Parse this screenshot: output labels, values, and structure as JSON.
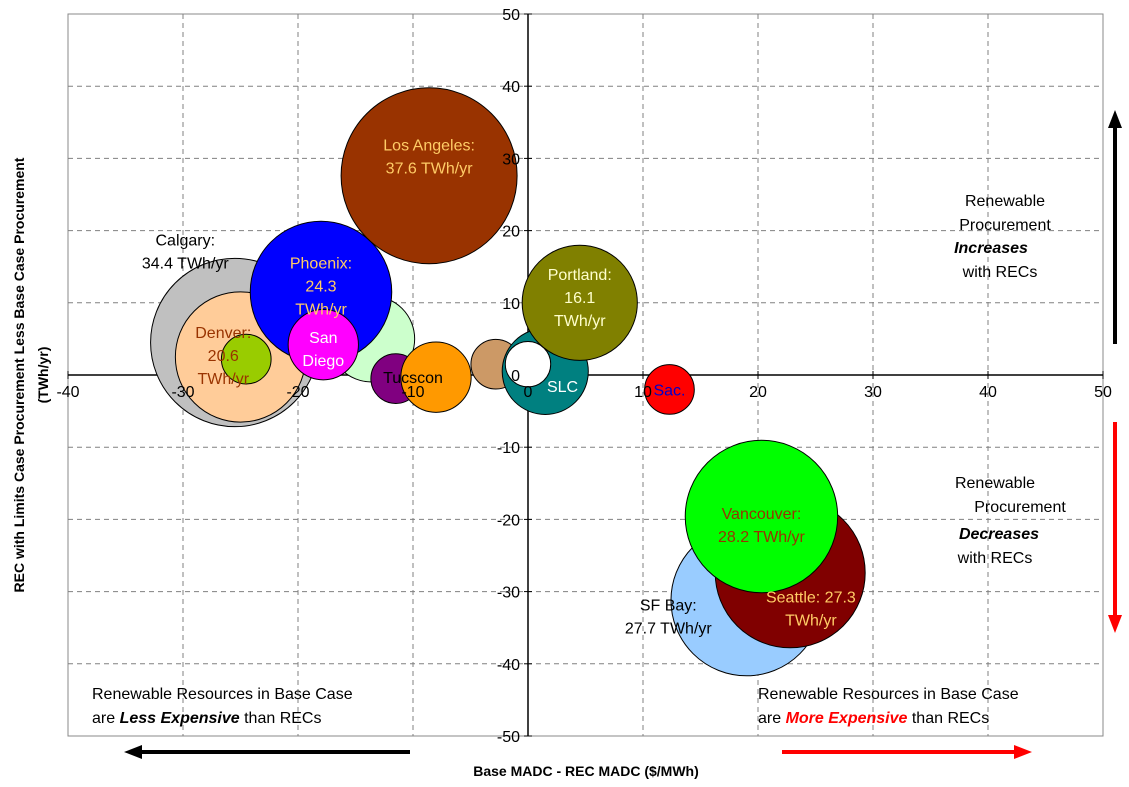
{
  "chart_data": {
    "type": "scatter",
    "subtype": "bubble",
    "xlabel": "Base MADC - REC MADC ($/MWh)",
    "ylabel_line1": "REC with Limits Case Procurement Less Base Case Procurement",
    "ylabel_line2": "(TWh/yr)",
    "xlim": [
      -40,
      50
    ],
    "ylim": [
      -50,
      50
    ],
    "xticks": [
      -40,
      -30,
      -20,
      -10,
      0,
      10,
      20,
      30,
      40,
      50
    ],
    "yticks": [
      -50,
      -40,
      -30,
      -20,
      -10,
      0,
      10,
      20,
      30,
      40,
      50
    ],
    "grid": true,
    "series": [
      {
        "name": "Calgary",
        "x": -25.5,
        "y": 4.5,
        "size": 34.4,
        "color": "#c0c0c0",
        "label_lines": [
          "Calgary:",
          "34.4 TWh/yr"
        ],
        "label_color": "#000000"
      },
      {
        "name": "Denver",
        "x": -25,
        "y": 2.5,
        "size": 20.6,
        "color": "#ffcc99",
        "label_lines": [
          "Denver:",
          "20.6",
          "TWh/yr"
        ],
        "label_color": "#993300"
      },
      {
        "name": "",
        "x": -24.5,
        "y": 2.2,
        "size": 3,
        "color": "#99cc00",
        "label_lines": [],
        "label_color": "#000000"
      },
      {
        "name": "",
        "x": -13.6,
        "y": 5,
        "size": 9,
        "color": "#ccffcc",
        "label_lines": [],
        "label_color": "#000000"
      },
      {
        "name": "Phoenix",
        "x": -18,
        "y": 11.5,
        "size": 24.3,
        "color": "#0000ff",
        "label_lines": [
          "Phoenix:",
          "24.3",
          "TWh/yr"
        ],
        "label_color": "#ffcc66"
      },
      {
        "name": "San Diego",
        "x": -17.8,
        "y": 4.2,
        "size": 6,
        "color": "#ff00ff",
        "label_lines": [
          "San",
          "Diego"
        ],
        "label_color": "#ffffff"
      },
      {
        "name": "",
        "x": -11.5,
        "y": -0.5,
        "size": 3,
        "color": "#800080",
        "label_lines": [],
        "label_color": "#000000"
      },
      {
        "name": "Los Angeles",
        "x": -8.6,
        "y": 27.6,
        "size": 37.6,
        "color": "#993300",
        "label_lines": [
          "Los Angeles:",
          "37.6 TWh/yr"
        ],
        "label_color": "#ffcc66"
      },
      {
        "name": "Tucscon",
        "x": -8,
        "y": -0.3,
        "size": 6,
        "color": "#ff9900",
        "label_lines": [
          "Tucscon"
        ],
        "label_color": "#000000"
      },
      {
        "name": "",
        "x": -2.8,
        "y": 1.5,
        "size": 3,
        "color": "#cc9966",
        "label_lines": [],
        "label_color": "#000000"
      },
      {
        "name": "SLC",
        "x": 1.5,
        "y": 0.5,
        "size": 9,
        "color": "#008080",
        "label_lines": [
          "SLC"
        ],
        "label_color": "#ffffff"
      },
      {
        "name": "",
        "x": 0,
        "y": 1.5,
        "size": 2.5,
        "color": "#ffffff",
        "label_lines": [],
        "label_color": "#000000"
      },
      {
        "name": "Portland",
        "x": 4.5,
        "y": 10,
        "size": 16.1,
        "color": "#808000",
        "label_lines": [
          "Portland:",
          "16.1",
          "TWh/yr"
        ],
        "label_color": "#ffffcc"
      },
      {
        "name": "Sac.",
        "x": 12.3,
        "y": -2,
        "size": 3,
        "color": "#ff0000",
        "label_lines": [
          "Sac."
        ],
        "label_color": "#0000cc"
      },
      {
        "name": "SF Bay",
        "x": 19,
        "y": -31.2,
        "size": 27.7,
        "color": "#99ccff",
        "label_lines": [
          "SF Bay:",
          "27.7 TWh/yr"
        ],
        "label_color": "#000000"
      },
      {
        "name": "Seattle",
        "x": 22.8,
        "y": -27.4,
        "size": 27.3,
        "color": "#800000",
        "label_lines": [
          "Seattle: 27.3",
          "TWh/yr"
        ],
        "label_color": "#ffcc66"
      },
      {
        "name": "Vancouver",
        "x": 20.3,
        "y": -19.6,
        "size": 28.2,
        "color": "#00ff00",
        "label_lines": [
          "Vancouver:",
          "28.2 TWh/yr"
        ],
        "label_color": "#993300"
      }
    ],
    "annotations": {
      "top_right": [
        "Renewable",
        "Procurement",
        "Increases",
        "with RECs"
      ],
      "bottom_right": [
        "Renewable",
        "Procurement",
        "Decreases",
        "with RECs"
      ],
      "bottom_left_line1": "Renewable Resources in Base Case",
      "bottom_left_line2_pre": "are ",
      "bottom_left_line2_em": "Less Expensive",
      "bottom_left_line2_post": " than RECs",
      "bottom_right2_line1": "Renewable Resources in Base Case",
      "bottom_right2_line2_pre": "are ",
      "bottom_right2_line2_em": "More Expensive",
      "bottom_right2_line2_post": " than RECs"
    },
    "colors": {
      "arrow_up": "#000000",
      "arrow_down": "#ff0000",
      "arrow_left": "#000000",
      "arrow_right": "#ff0000",
      "emphasis_red": "#ff0000"
    }
  }
}
